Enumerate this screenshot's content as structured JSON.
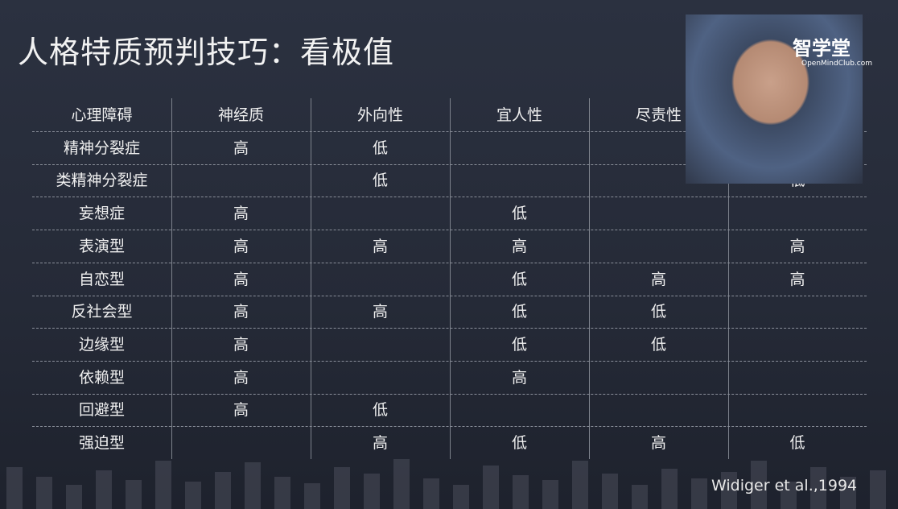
{
  "title": "人格特质预判技巧：看极值",
  "logo": {
    "name": "智学堂",
    "url": "OpenMindClub.com"
  },
  "table": {
    "header": [
      "心理障碍",
      "神经质",
      "外向性",
      "宜人性",
      "尽责性",
      null
    ],
    "rows": [
      [
        "精神分裂症",
        "高",
        "低",
        null,
        null,
        null
      ],
      [
        "类精神分裂症",
        null,
        "低",
        null,
        null,
        "低"
      ],
      [
        "妄想症",
        "高",
        null,
        "低",
        null,
        null
      ],
      [
        "表演型",
        "高",
        "高",
        "高",
        null,
        "高"
      ],
      [
        "自恋型",
        "高",
        null,
        "低",
        "高",
        "高"
      ],
      [
        "反社会型",
        "高",
        "高",
        "低",
        "低",
        null
      ],
      [
        "边缘型",
        "高",
        null,
        "低",
        "低",
        null
      ],
      [
        "依赖型",
        "高",
        null,
        "高",
        null,
        null
      ],
      [
        "回避型",
        "高",
        "低",
        null,
        null,
        null
      ],
      [
        "强迫型",
        null,
        "高",
        "低",
        "高",
        "低"
      ]
    ]
  },
  "citation": "Widiger et al.,1994"
}
